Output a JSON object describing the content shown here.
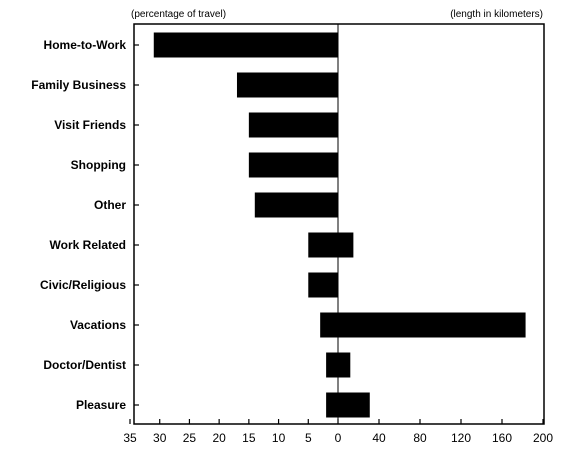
{
  "chart_data": {
    "type": "bar",
    "orientation": "horizontal-diverging",
    "left_header": "(percentage of travel)",
    "right_header": "(length in kilometers)",
    "categories": [
      "Home-to-Work",
      "Family Business",
      "Visit Friends",
      "Shopping",
      "Other",
      "Work Related",
      "Civic/Religious",
      "Vacations",
      "Doctor/Dentist",
      "Pleasure"
    ],
    "series": [
      {
        "name": "percentage of travel",
        "values": [
          31,
          17,
          15,
          15,
          14,
          5,
          5,
          3,
          2,
          2
        ]
      },
      {
        "name": "length in kilometers",
        "values": [
          0,
          0,
          0,
          0,
          0,
          15,
          0,
          183,
          12,
          31
        ]
      }
    ],
    "left_axis": {
      "range": [
        35,
        0
      ],
      "ticks": [
        35,
        30,
        25,
        20,
        15,
        10,
        5,
        0
      ],
      "tick_labels": [
        "35",
        "30",
        "25",
        "20",
        "15",
        "10",
        "5",
        "0"
      ]
    },
    "right_axis": {
      "range": [
        0,
        200
      ],
      "ticks": [
        40,
        80,
        120,
        160,
        200
      ],
      "tick_labels": [
        "40",
        "80",
        "120",
        "160",
        "200"
      ]
    },
    "grid": false,
    "legend": "none",
    "bar_color": "#000000"
  }
}
